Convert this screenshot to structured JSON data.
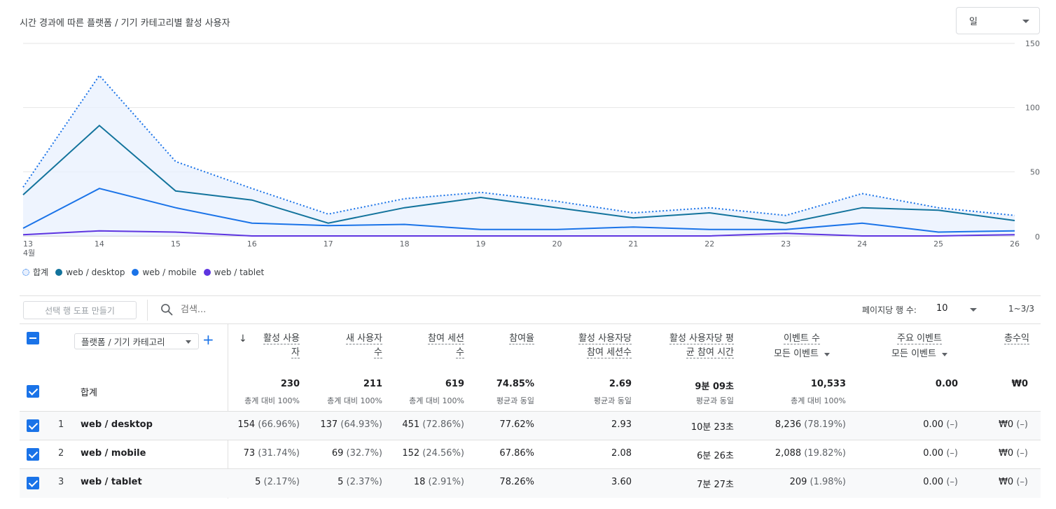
{
  "chart_title": "시간 경과에 따른 플랫폼 / 기기 카테고리별 활성 사용자",
  "granularity": "일",
  "chart_data": {
    "type": "line",
    "categories": [
      "13",
      "14",
      "15",
      "16",
      "17",
      "18",
      "19",
      "20",
      "21",
      "22",
      "23",
      "24",
      "25",
      "26"
    ],
    "month_label": "4월",
    "ylim": [
      0,
      150
    ],
    "yticks": [
      0,
      50,
      100,
      150
    ],
    "series": [
      {
        "name": "합계",
        "style": "dotted-area",
        "color": "#1a73e8",
        "values": [
          38,
          125,
          58,
          37,
          17,
          29,
          34,
          27,
          18,
          22,
          16,
          33,
          22,
          16
        ]
      },
      {
        "name": "web / desktop",
        "style": "solid",
        "color": "#12739c",
        "values": [
          32,
          86,
          35,
          28,
          10,
          22,
          30,
          22,
          14,
          18,
          10,
          22,
          20,
          12
        ]
      },
      {
        "name": "web / mobile",
        "style": "solid",
        "color": "#1a73e8",
        "values": [
          6,
          37,
          22,
          10,
          8,
          9,
          5,
          5,
          7,
          5,
          5,
          10,
          3,
          4
        ]
      },
      {
        "name": "web / tablet",
        "style": "solid",
        "color": "#5e35e0",
        "values": [
          1,
          4,
          3,
          0,
          0,
          0,
          0,
          0,
          0,
          0,
          2,
          0,
          0,
          1
        ]
      }
    ],
    "legend": [
      "합계",
      "web / desktop",
      "web / mobile",
      "web / tablet"
    ]
  },
  "toolbar": {
    "create_audience": "선택 행 도표 만들기",
    "search_placeholder": "검색...",
    "rows_per_page_label": "페이지당 행 수:",
    "rows_per_page": "10",
    "pagination": "1~3/3"
  },
  "table": {
    "dimension_select": "플랫폼 / 기기 카테고리",
    "columns": {
      "active_users": [
        "활성 사용",
        "자"
      ],
      "new_users": [
        "새 사용자",
        "수"
      ],
      "engaged_sessions": [
        "참여 세션",
        "수"
      ],
      "engagement_rate": "참여율",
      "sessions_per_user": [
        "활성 사용자당",
        "참여 세션수"
      ],
      "avg_time": [
        "활성 사용자당 평",
        "균 참여 시간"
      ],
      "event_count": "이벤트 수",
      "event_count_sub": "모든 이벤트",
      "key_events": "주요 이벤트",
      "key_events_sub": "모든 이벤트",
      "revenue": "총수익"
    },
    "total": {
      "label": "합계",
      "active_users": "230",
      "active_users_sub": "총계 대비 100%",
      "new_users": "211",
      "new_users_sub": "총계 대비 100%",
      "engaged_sessions": "619",
      "engaged_sessions_sub": "총계 대비 100%",
      "engagement_rate": "74.85%",
      "engagement_rate_sub": "평균과 동일",
      "sessions_per_user": "2.69",
      "sessions_per_user_sub": "평균과 동일",
      "avg_time": "9분 09초",
      "avg_time_sub": "평균과 동일",
      "event_count": "10,533",
      "event_count_sub": "총계 대비 100%",
      "key_events": "0.00",
      "revenue": "₩0"
    },
    "rows": [
      {
        "num": "1",
        "dim": "web / desktop",
        "active_users": "154",
        "active_users_pct": "(66.96%)",
        "new_users": "137",
        "new_users_pct": "(64.93%)",
        "engaged_sessions": "451",
        "engaged_sessions_pct": "(72.86%)",
        "engagement_rate": "77.62%",
        "sessions_per_user": "2.93",
        "avg_time": "10분 23초",
        "event_count": "8,236",
        "event_count_pct": "(78.19%)",
        "key_events": "0.00",
        "key_events_pct": "(–)",
        "revenue": "₩0",
        "revenue_pct": "(–)"
      },
      {
        "num": "2",
        "dim": "web / mobile",
        "active_users": "73",
        "active_users_pct": "(31.74%)",
        "new_users": "69",
        "new_users_pct": "(32.7%)",
        "engaged_sessions": "152",
        "engaged_sessions_pct": "(24.56%)",
        "engagement_rate": "67.86%",
        "sessions_per_user": "2.08",
        "avg_time": "6분 26초",
        "event_count": "2,088",
        "event_count_pct": "(19.82%)",
        "key_events": "0.00",
        "key_events_pct": "(–)",
        "revenue": "₩0",
        "revenue_pct": "(–)"
      },
      {
        "num": "3",
        "dim": "web / tablet",
        "active_users": "5",
        "active_users_pct": "(2.17%)",
        "new_users": "5",
        "new_users_pct": "(2.37%)",
        "engaged_sessions": "18",
        "engaged_sessions_pct": "(2.91%)",
        "engagement_rate": "78.26%",
        "sessions_per_user": "3.60",
        "avg_time": "7분 27초",
        "event_count": "209",
        "event_count_pct": "(1.98%)",
        "key_events": "0.00",
        "key_events_pct": "(–)",
        "revenue": "₩0",
        "revenue_pct": "(–)"
      }
    ]
  }
}
